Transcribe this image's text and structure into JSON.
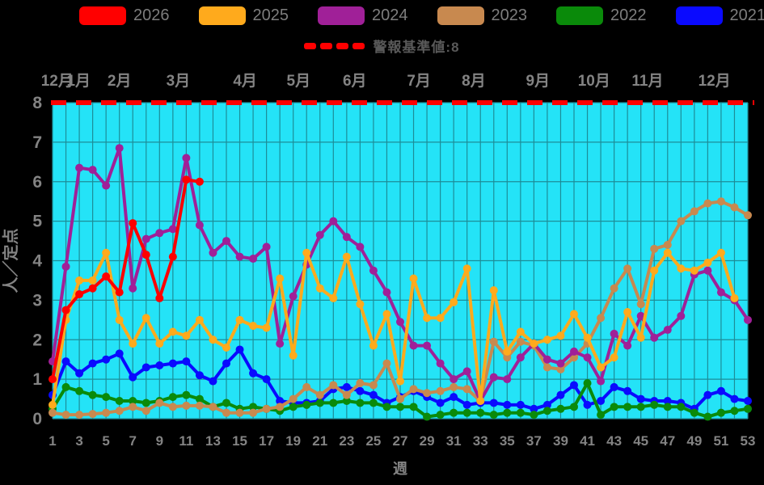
{
  "legend": {
    "items": [
      {
        "label": "2026",
        "color": "#ff0000"
      },
      {
        "label": "2025",
        "color": "#ffaa1c"
      },
      {
        "label": "2024",
        "color": "#a02098"
      },
      {
        "label": "2023",
        "color": "#c8894f"
      },
      {
        "label": "2022",
        "color": "#0a8a0a"
      },
      {
        "label": "2021",
        "color": "#0a0aff"
      }
    ]
  },
  "alert": {
    "label": "警報基準値:8",
    "value": 8,
    "color": "#ff0000"
  },
  "colors": {
    "background": "#000000",
    "plot_background": "#24e3f7",
    "grid": "#1d8d98",
    "axis_text": "#838383",
    "threshold": "#ff0000"
  },
  "chart_data": {
    "type": "line",
    "title": "",
    "xlabel": "週",
    "ylabel": "人／定点",
    "ylim": [
      0,
      8
    ],
    "xlim": [
      1,
      53
    ],
    "grid": true,
    "legend_position": "top",
    "y_ticks": [
      0,
      1,
      2,
      3,
      4,
      5,
      6,
      7,
      8
    ],
    "x_ticks": [
      1,
      3,
      5,
      7,
      9,
      11,
      13,
      15,
      17,
      19,
      21,
      23,
      25,
      27,
      29,
      31,
      33,
      35,
      37,
      39,
      41,
      43,
      45,
      47,
      49,
      51,
      53
    ],
    "month_labels": [
      {
        "label": "12月",
        "week": 1.35
      },
      {
        "label": "1月",
        "week": 2.95
      },
      {
        "label": "2月",
        "week": 6.0
      },
      {
        "label": "3月",
        "week": 10.4
      },
      {
        "label": "4月",
        "week": 15.4
      },
      {
        "label": "5月",
        "week": 19.4
      },
      {
        "label": "6月",
        "week": 23.6
      },
      {
        "label": "7月",
        "week": 28.4
      },
      {
        "label": "8月",
        "week": 32.5
      },
      {
        "label": "9月",
        "week": 37.3
      },
      {
        "label": "10月",
        "week": 41.5
      },
      {
        "label": "11月",
        "week": 45.5
      },
      {
        "label": "12月",
        "week": 50.5
      }
    ],
    "threshold": {
      "value": 8,
      "label": "警報基準値:8",
      "color": "#ff0000"
    },
    "x": [
      1,
      2,
      3,
      4,
      5,
      6,
      7,
      8,
      9,
      10,
      11,
      12,
      13,
      14,
      15,
      16,
      17,
      18,
      19,
      20,
      21,
      22,
      23,
      24,
      25,
      26,
      27,
      28,
      29,
      30,
      31,
      32,
      33,
      34,
      35,
      36,
      37,
      38,
      39,
      40,
      41,
      42,
      43,
      44,
      45,
      46,
      47,
      48,
      49,
      50,
      51,
      52,
      53
    ],
    "series": [
      {
        "name": "2021",
        "color": "#0a0aff",
        "values": [
          0.6,
          1.45,
          1.15,
          1.4,
          1.5,
          1.65,
          1.05,
          1.3,
          1.35,
          1.4,
          1.45,
          1.1,
          0.95,
          1.4,
          1.75,
          1.15,
          1.0,
          0.45,
          0.4,
          0.4,
          0.45,
          0.75,
          0.8,
          0.7,
          0.6,
          0.4,
          0.55,
          0.7,
          0.55,
          0.4,
          0.55,
          0.35,
          0.4,
          0.4,
          0.35,
          0.35,
          0.25,
          0.35,
          0.6,
          0.85,
          0.35,
          0.45,
          0.8,
          0.7,
          0.5,
          0.45,
          0.45,
          0.4,
          0.25,
          0.6,
          0.7,
          0.5,
          0.45
        ]
      },
      {
        "name": "2022",
        "color": "#0a8a0a",
        "values": [
          0.25,
          0.8,
          0.7,
          0.6,
          0.55,
          0.45,
          0.45,
          0.4,
          0.45,
          0.55,
          0.6,
          0.5,
          0.3,
          0.4,
          0.25,
          0.3,
          0.25,
          0.2,
          0.3,
          0.35,
          0.4,
          0.4,
          0.45,
          0.4,
          0.4,
          0.3,
          0.3,
          0.3,
          0.05,
          0.1,
          0.15,
          0.15,
          0.15,
          0.1,
          0.15,
          0.15,
          0.1,
          0.2,
          0.25,
          0.3,
          0.9,
          0.1,
          0.3,
          0.3,
          0.3,
          0.35,
          0.3,
          0.3,
          0.15,
          0.05,
          0.15,
          0.2,
          0.25
        ]
      },
      {
        "name": "2023",
        "color": "#c8894f",
        "values": [
          0.15,
          0.1,
          0.1,
          0.12,
          0.15,
          0.2,
          0.3,
          0.2,
          0.4,
          0.3,
          0.33,
          0.33,
          0.3,
          0.15,
          0.15,
          0.15,
          0.25,
          0.3,
          0.5,
          0.8,
          0.6,
          0.85,
          0.6,
          0.9,
          0.85,
          1.4,
          0.5,
          0.75,
          0.65,
          0.7,
          0.8,
          0.75,
          0.45,
          1.95,
          1.55,
          1.95,
          1.85,
          1.3,
          1.25,
          1.55,
          1.9,
          2.55,
          3.3,
          3.8,
          2.9,
          4.3,
          4.4,
          5.0,
          5.25,
          5.45,
          5.5,
          5.35,
          5.15
        ]
      },
      {
        "name": "2024",
        "color": "#a02098",
        "values": [
          1.45,
          3.85,
          6.35,
          6.3,
          5.9,
          6.85,
          3.3,
          4.55,
          4.7,
          4.8,
          6.6,
          4.9,
          4.2,
          4.5,
          4.1,
          4.05,
          4.35,
          1.9,
          3.1,
          3.9,
          4.65,
          5.0,
          4.6,
          4.35,
          3.75,
          3.2,
          2.45,
          1.85,
          1.85,
          1.4,
          1.0,
          1.2,
          0.45,
          1.05,
          1.0,
          1.55,
          1.9,
          1.5,
          1.4,
          1.7,
          1.55,
          0.95,
          2.15,
          1.85,
          2.6,
          2.05,
          2.25,
          2.6,
          3.65,
          3.75,
          3.2,
          3.0,
          2.5
        ]
      },
      {
        "name": "2025",
        "color": "#ffaa1c",
        "values": [
          0.35,
          2.5,
          3.5,
          3.5,
          4.2,
          2.5,
          1.9,
          2.55,
          1.9,
          2.2,
          2.1,
          2.5,
          2.0,
          1.8,
          2.5,
          2.35,
          2.3,
          3.55,
          1.6,
          4.2,
          3.3,
          3.05,
          4.1,
          2.9,
          1.85,
          2.65,
          0.95,
          3.55,
          2.55,
          2.55,
          2.95,
          3.8,
          0.45,
          3.25,
          1.7,
          2.2,
          1.9,
          2.0,
          2.1,
          2.65,
          2.05,
          1.3,
          1.55,
          2.7,
          2.05,
          3.75,
          4.2,
          3.8,
          3.75,
          3.95,
          4.2,
          3.05,
          null
        ]
      },
      {
        "name": "2026",
        "color": "#ff0000",
        "values": [
          1.0,
          2.75,
          3.15,
          3.3,
          3.6,
          3.2,
          4.95,
          4.15,
          3.05,
          4.1,
          6.05,
          6.0,
          null,
          null,
          null,
          null,
          null,
          null,
          null,
          null,
          null,
          null,
          null,
          null,
          null,
          null,
          null,
          null,
          null,
          null,
          null,
          null,
          null,
          null,
          null,
          null,
          null,
          null,
          null,
          null,
          null,
          null,
          null,
          null,
          null,
          null,
          null,
          null,
          null,
          null,
          null,
          null,
          null
        ]
      }
    ]
  }
}
